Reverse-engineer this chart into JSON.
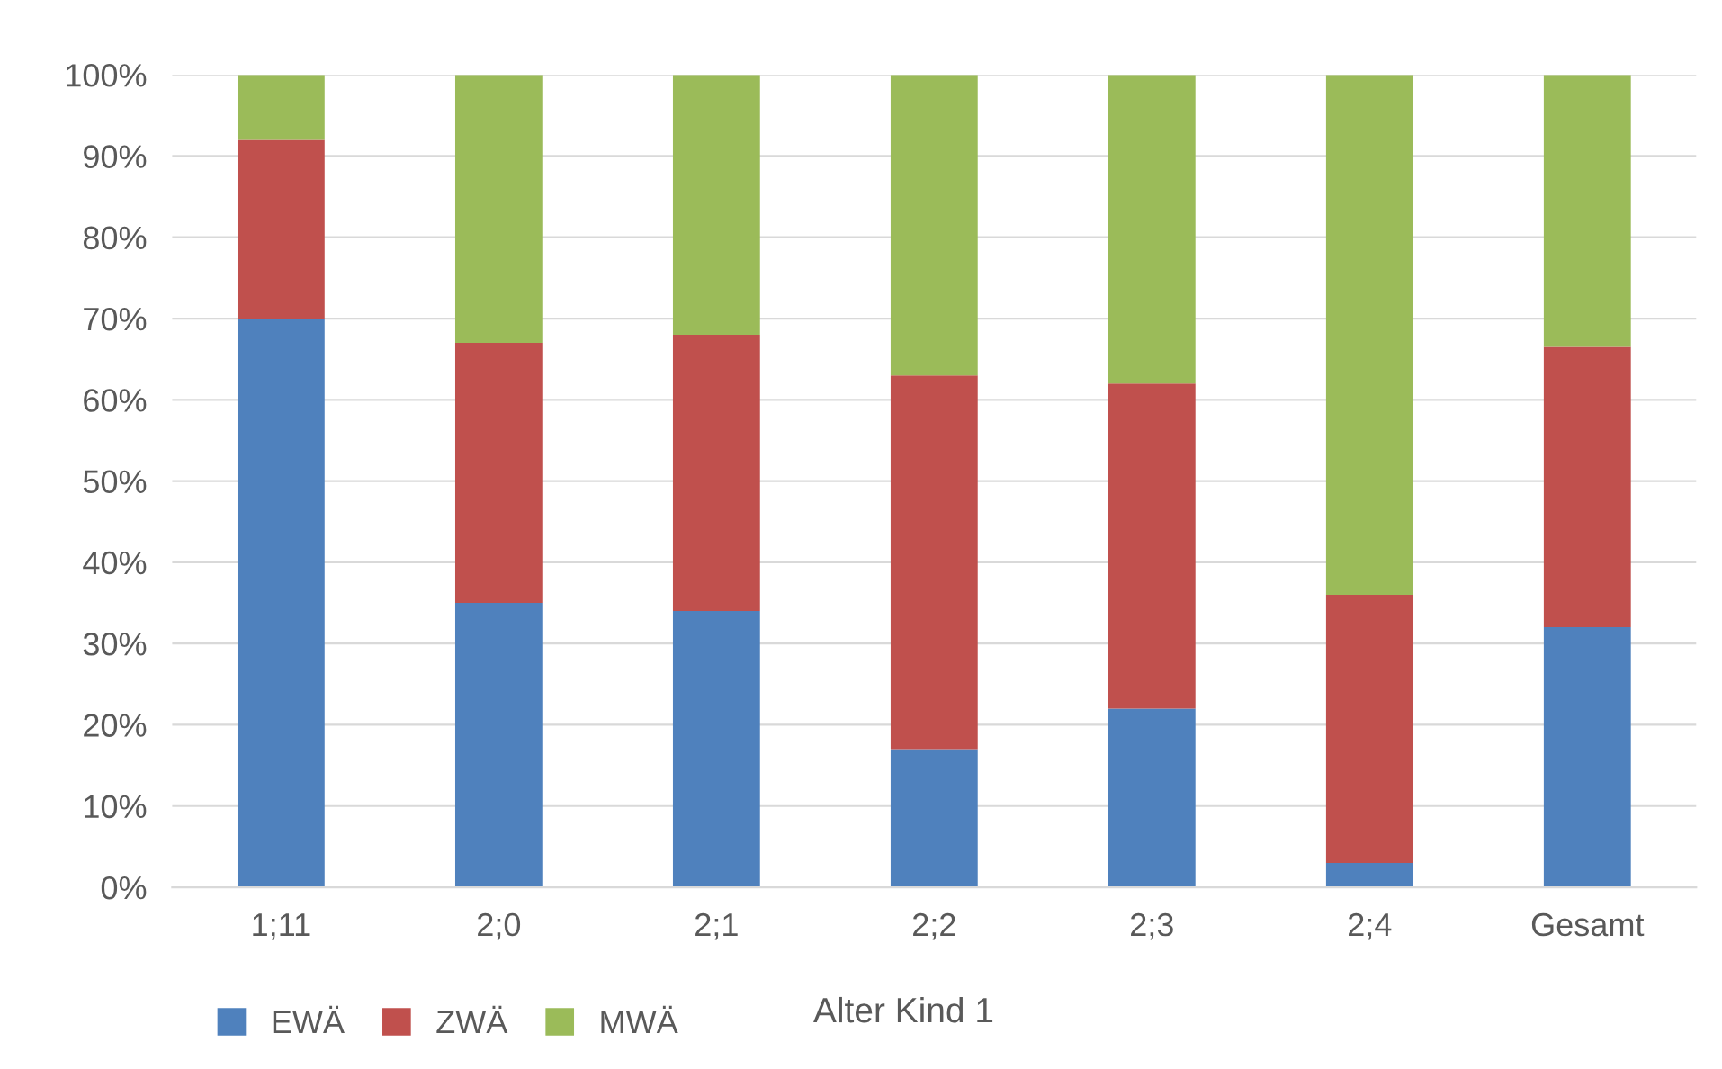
{
  "chart_data": {
    "type": "bar",
    "stacked": true,
    "xlabel": "Alter Kind 1",
    "categories": [
      "1;11",
      "2;0",
      "2;1",
      "2;2",
      "2;3",
      "2;4",
      "Gesamt"
    ],
    "series": [
      {
        "name": "EWÄ",
        "color": "#4f81bd",
        "values": [
          70,
          35,
          34,
          17,
          22,
          3,
          32
        ]
      },
      {
        "name": "ZWÄ",
        "color": "#c0504d",
        "values": [
          22,
          32,
          34,
          46,
          40,
          33,
          34.5
        ]
      },
      {
        "name": "MWÄ",
        "color": "#9bbb59",
        "values": [
          8,
          33,
          32,
          37,
          38,
          64,
          33.5
        ]
      }
    ],
    "ylim": [
      0,
      100
    ],
    "yticks": [
      {
        "value": 0,
        "label": "0%"
      },
      {
        "value": 10,
        "label": "10%"
      },
      {
        "value": 20,
        "label": "20%"
      },
      {
        "value": 30,
        "label": "30%"
      },
      {
        "value": 40,
        "label": "40%"
      },
      {
        "value": 50,
        "label": "50%"
      },
      {
        "value": 60,
        "label": "60%"
      },
      {
        "value": 70,
        "label": "70%"
      },
      {
        "value": 80,
        "label": "80%"
      },
      {
        "value": 90,
        "label": "90%"
      },
      {
        "value": 100,
        "label": "100%"
      }
    ],
    "grid": "y",
    "legend": "bottom left"
  }
}
